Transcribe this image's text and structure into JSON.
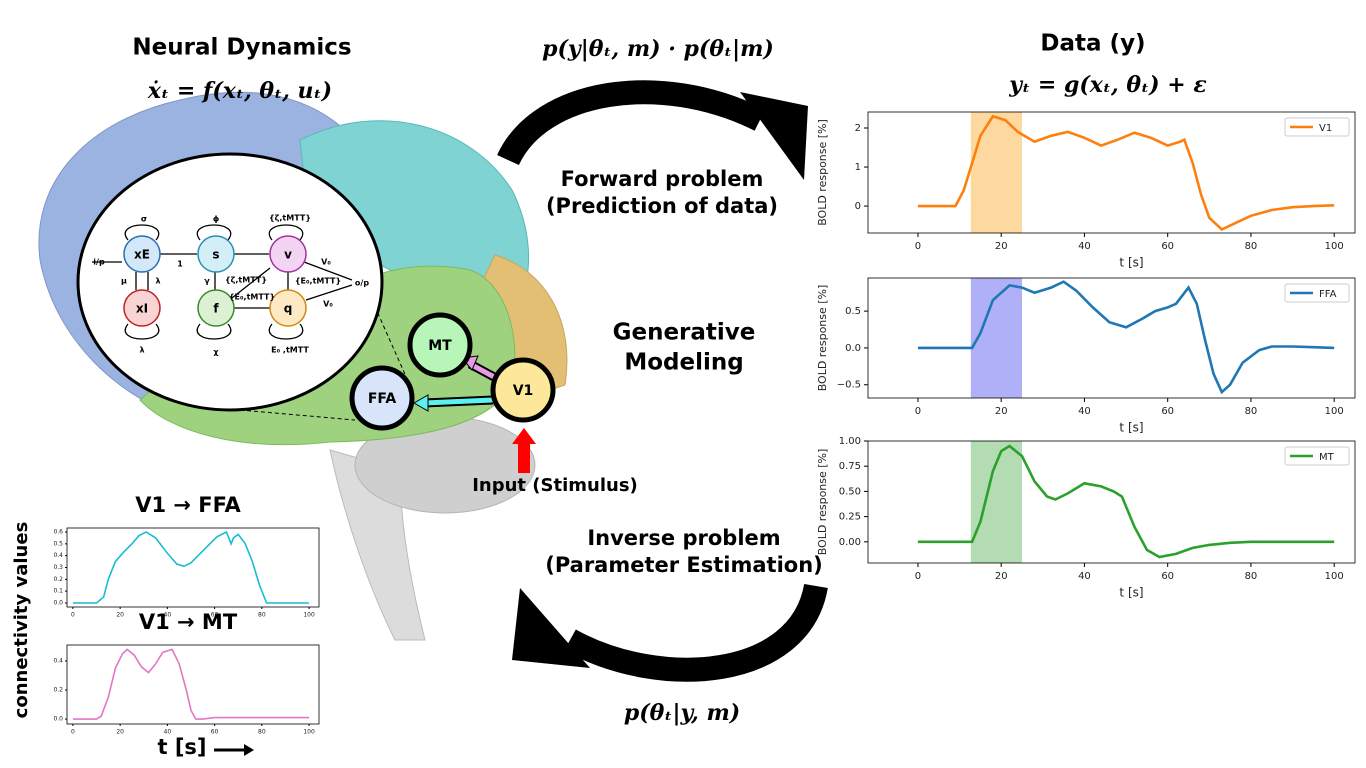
{
  "neural_dynamics": {
    "title": "Neural Dynamics",
    "equation": "ẋₜ = f(xₜ, θₜ, uₜ)"
  },
  "data_panel": {
    "title": "Data (y)",
    "equation": "yₜ = g(xₜ, θₜ) + ε"
  },
  "forward": {
    "equation": "p(y|θₜ, m) · p(θₜ|m)",
    "title": "Forward problem",
    "subtitle": "(Prediction of data)"
  },
  "generative": {
    "line1": "Generative",
    "line2": "Modeling"
  },
  "inverse": {
    "title": "Inverse problem",
    "subtitle": "(Parameter Estimation)",
    "equation": "p(θₜ|y, m)"
  },
  "regions": {
    "nodes": [
      {
        "label": "MT"
      },
      {
        "label": "FFA"
      },
      {
        "label": "V1"
      }
    ],
    "input": "Input (Stimulus)"
  },
  "model": {
    "nodes": [
      "xE",
      "s",
      "v",
      "xI",
      "f",
      "q"
    ],
    "edge_labels": [
      "σ",
      "ϕ",
      "{ζ,tMTT}",
      "i/p",
      "1",
      "μ",
      "λ",
      "γ",
      "{ζ,tMTT}",
      "V₀",
      "{E₀,tMTT}",
      "{E₀,tMTT}",
      "o/p",
      "V₀",
      "λ",
      "χ",
      "E₀ ,tMTT"
    ]
  },
  "connectivity": {
    "ylabel": "connectivity values",
    "xlabel": "t [s]"
  },
  "chart_data": [
    {
      "type": "line",
      "xlabel": "t [s]",
      "ylabel": "BOLD response [%]",
      "x": [
        0,
        5,
        9,
        11,
        13,
        15,
        18,
        21,
        24,
        28,
        32,
        36,
        40,
        44,
        48,
        52,
        56,
        60,
        63,
        64,
        66,
        68,
        70,
        73,
        76,
        80,
        85,
        90,
        95,
        100
      ],
      "series": [
        {
          "name": "V1",
          "color": "#ff7f0e",
          "values": [
            0,
            0,
            0,
            0.4,
            1.1,
            1.8,
            2.3,
            2.2,
            1.9,
            1.65,
            1.8,
            1.9,
            1.75,
            1.55,
            1.7,
            1.88,
            1.75,
            1.55,
            1.65,
            1.7,
            1.1,
            0.3,
            -0.3,
            -0.6,
            -0.45,
            -0.25,
            -0.1,
            -0.03,
            0,
            0.02
          ]
        }
      ],
      "highlight": {
        "range": [
          12.7,
          25
        ],
        "color": "#fdd9a0"
      },
      "xlim": [
        -12,
        105
      ],
      "xticks": [
        0,
        20,
        40,
        60,
        80,
        100
      ],
      "ylim": [
        -0.69,
        2.41
      ],
      "yticks": [
        0,
        1,
        2
      ],
      "legend": "upper right"
    },
    {
      "type": "line",
      "xlabel": "t [s]",
      "ylabel": "BOLD response [%]",
      "x": [
        0,
        5,
        10,
        13,
        15,
        18,
        22,
        25,
        28,
        32,
        35,
        38,
        42,
        46,
        50,
        54,
        57,
        60,
        62,
        65,
        67,
        69,
        71,
        73,
        75,
        78,
        82,
        85,
        90,
        95,
        100
      ],
      "series": [
        {
          "name": "FFA",
          "color": "#1f77b4",
          "values": [
            0,
            0,
            0,
            0,
            0.2,
            0.65,
            0.85,
            0.82,
            0.75,
            0.82,
            0.9,
            0.78,
            0.55,
            0.35,
            0.28,
            0.4,
            0.5,
            0.55,
            0.6,
            0.82,
            0.6,
            0.1,
            -0.35,
            -0.6,
            -0.5,
            -0.2,
            -0.03,
            0.02,
            0.02,
            0.01,
            0
          ]
        }
      ],
      "highlight": {
        "range": [
          12.7,
          25
        ],
        "color": "#b0b0f8"
      },
      "xlim": [
        -12,
        105
      ],
      "xticks": [
        0,
        20,
        40,
        60,
        80,
        100
      ],
      "ylim": [
        -0.68,
        0.95
      ],
      "yticks": [
        {
          "value": -0.5,
          "label": "−0.5"
        },
        {
          "value": 0,
          "label": "0.0"
        },
        0.5
      ],
      "legend": "upper right"
    },
    {
      "type": "line",
      "xlabel": "t [s]",
      "ylabel": "BOLD response [%]",
      "x": [
        0,
        5,
        10,
        13,
        15,
        18,
        20,
        22,
        25,
        28,
        31,
        33,
        36,
        40,
        44,
        47,
        49,
        52,
        55,
        58,
        62,
        66,
        70,
        75,
        80,
        90,
        100
      ],
      "series": [
        {
          "name": "MT",
          "color": "#2ca02c",
          "values": [
            0,
            0,
            0,
            0,
            0.2,
            0.7,
            0.9,
            0.95,
            0.85,
            0.6,
            0.45,
            0.42,
            0.48,
            0.58,
            0.55,
            0.5,
            0.45,
            0.15,
            -0.08,
            -0.15,
            -0.12,
            -0.06,
            -0.03,
            -0.01,
            0,
            0,
            0
          ]
        }
      ],
      "highlight": {
        "range": [
          12.7,
          25
        ],
        "color": "#b3dcb3"
      },
      "xlim": [
        -12,
        105
      ],
      "xticks": [
        0,
        20,
        40,
        60,
        80,
        100
      ],
      "ylim": [
        -0.21,
        1.0
      ],
      "yticks": [
        {
          "value": 0,
          "label": "0.00"
        },
        {
          "value": 0.25,
          "label": "0.25"
        },
        {
          "value": 0.5,
          "label": "0.50"
        },
        {
          "value": 0.75,
          "label": "0.75"
        },
        {
          "value": 1,
          "label": "1.00"
        }
      ],
      "legend": "upper right"
    },
    {
      "type": "line",
      "title": "V1 → FFA",
      "color": "#17becf",
      "x": [
        0,
        5,
        10,
        13,
        15,
        18,
        21,
        25,
        28,
        31,
        35,
        40,
        44,
        47,
        50,
        54,
        57,
        61,
        65,
        66,
        67,
        68,
        70,
        73,
        76,
        79,
        82,
        85,
        90,
        95,
        100
      ],
      "values": [
        0,
        0,
        0,
        0.05,
        0.2,
        0.35,
        0.42,
        0.5,
        0.57,
        0.6,
        0.55,
        0.42,
        0.33,
        0.31,
        0.34,
        0.42,
        0.48,
        0.56,
        0.6,
        0.55,
        0.5,
        0.55,
        0.58,
        0.5,
        0.35,
        0.15,
        0,
        0,
        0,
        0,
        0
      ],
      "xlim": [
        -2.5,
        104.2
      ],
      "xticks": [
        0,
        20,
        40,
        60,
        80,
        100
      ],
      "ylim": [
        -0.034,
        0.634
      ],
      "yticks": [
        {
          "value": 0,
          "label": "0.0"
        },
        0.1,
        0.2,
        0.3,
        0.4,
        0.5,
        0.6
      ]
    },
    {
      "type": "line",
      "title": "V1 → MT",
      "color": "#e377c2",
      "x": [
        0,
        5,
        10,
        12,
        15,
        18,
        21,
        23,
        26,
        29,
        32,
        35,
        38,
        42,
        45,
        48,
        50,
        52,
        55,
        60,
        70,
        80,
        90,
        100
      ],
      "values": [
        0,
        0,
        0,
        0.02,
        0.15,
        0.35,
        0.45,
        0.48,
        0.44,
        0.36,
        0.32,
        0.38,
        0.46,
        0.48,
        0.38,
        0.2,
        0.06,
        0,
        0,
        0.01,
        0.01,
        0.01,
        0.01,
        0.01
      ],
      "xlim": [
        -2.5,
        104.2
      ],
      "xticks": [
        0,
        20,
        40,
        60,
        80,
        100
      ],
      "ylim": [
        -0.034,
        0.51
      ],
      "yticks": [
        {
          "value": 0,
          "label": "0.0"
        },
        0.2,
        0.4
      ]
    }
  ]
}
